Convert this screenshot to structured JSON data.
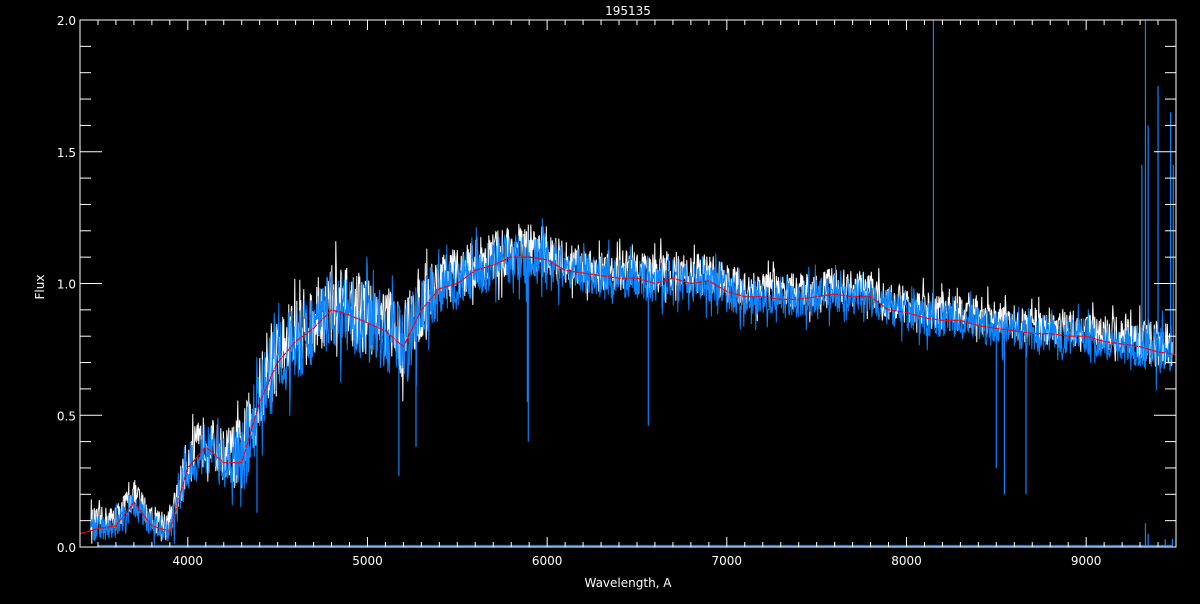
{
  "chart_data": {
    "type": "line",
    "title": "195135",
    "xlabel": "Wavelength, A",
    "ylabel": "Flux",
    "xlim": [
      3400,
      9500
    ],
    "ylim": [
      0,
      2.0
    ],
    "x_ticks": [
      4000,
      5000,
      6000,
      7000,
      8000,
      9000
    ],
    "y_ticks": [
      0.0,
      0.5,
      1.0,
      1.5,
      2.0
    ],
    "y_tick_labels": [
      "0.0",
      "0.5",
      "1.0",
      "1.5",
      "2.0"
    ],
    "x_minor_step": 100,
    "y_minor_step": 0.1,
    "grid": false,
    "colors": {
      "background": "#000000",
      "axes": "#ffffff",
      "observed": "#0a84ff",
      "observed_alt": "#ffffff",
      "model": "#ff0000",
      "error": "#0a84ff"
    },
    "x": [
      3500,
      3600,
      3700,
      3800,
      3900,
      4000,
      4100,
      4200,
      4300,
      4400,
      4500,
      4600,
      4700,
      4800,
      4900,
      5000,
      5100,
      5200,
      5300,
      5400,
      5500,
      5600,
      5700,
      5800,
      5900,
      6000,
      6100,
      6200,
      6300,
      6400,
      6500,
      6600,
      6700,
      6800,
      6900,
      7000,
      7100,
      7200,
      7300,
      7400,
      7500,
      7600,
      7700,
      7800,
      7900,
      8000,
      8100,
      8200,
      8300,
      8400,
      8500,
      8600,
      8700,
      8800,
      8900,
      9000,
      9100,
      9200,
      9300,
      9400,
      9500
    ],
    "model": [
      0.07,
      0.08,
      0.17,
      0.08,
      0.06,
      0.3,
      0.38,
      0.32,
      0.32,
      0.55,
      0.7,
      0.78,
      0.83,
      0.9,
      0.88,
      0.85,
      0.82,
      0.76,
      0.9,
      0.98,
      1.0,
      1.05,
      1.07,
      1.1,
      1.1,
      1.09,
      1.05,
      1.04,
      1.03,
      1.02,
      1.02,
      1.0,
      1.02,
      1.0,
      1.01,
      0.97,
      0.95,
      0.95,
      0.94,
      0.94,
      0.95,
      0.96,
      0.95,
      0.95,
      0.9,
      0.89,
      0.87,
      0.86,
      0.86,
      0.84,
      0.83,
      0.82,
      0.81,
      0.81,
      0.8,
      0.8,
      0.78,
      0.77,
      0.76,
      0.74,
      0.73
    ],
    "observed_scatter": [
      0.05,
      0.05,
      0.06,
      0.05,
      0.05,
      0.1,
      0.1,
      0.1,
      0.15,
      0.15,
      0.15,
      0.15,
      0.15,
      0.15,
      0.15,
      0.15,
      0.15,
      0.15,
      0.15,
      0.1,
      0.1,
      0.1,
      0.1,
      0.1,
      0.1,
      0.1,
      0.08,
      0.08,
      0.08,
      0.08,
      0.08,
      0.08,
      0.08,
      0.08,
      0.08,
      0.08,
      0.07,
      0.07,
      0.07,
      0.07,
      0.07,
      0.07,
      0.07,
      0.07,
      0.07,
      0.07,
      0.07,
      0.07,
      0.07,
      0.07,
      0.07,
      0.07,
      0.07,
      0.07,
      0.07,
      0.07,
      0.07,
      0.07,
      0.08,
      0.09,
      0.09
    ],
    "observed_lines": [
      [
        4310,
        0.35
      ],
      [
        4385,
        0.13
      ],
      [
        5175,
        0.27
      ],
      [
        5270,
        0.38
      ],
      [
        5890,
        0.55
      ],
      [
        5895,
        0.4
      ],
      [
        6563,
        0.46
      ],
      [
        7605,
        1.07
      ],
      [
        8150,
        2.0
      ],
      [
        8500,
        0.3
      ],
      [
        8545,
        0.2
      ],
      [
        8665,
        0.2
      ],
      [
        9310,
        1.45
      ],
      [
        9330,
        2.0
      ],
      [
        9345,
        1.6
      ],
      [
        9400,
        1.75
      ],
      [
        9470,
        1.65
      ],
      [
        9485,
        1.45
      ]
    ],
    "error_level": 0.005,
    "error_lines": [
      [
        7600,
        0.02
      ],
      [
        9330,
        0.09
      ],
      [
        9345,
        0.05
      ],
      [
        9440,
        0.03
      ],
      [
        9480,
        0.03
      ]
    ]
  }
}
